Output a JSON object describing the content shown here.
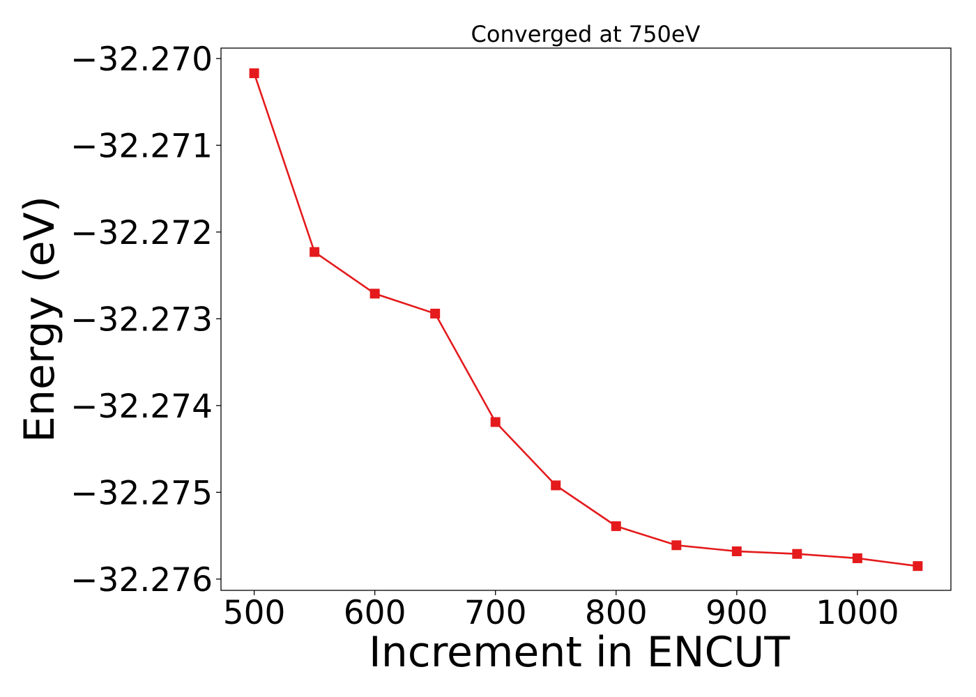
{
  "chart_data": {
    "type": "line",
    "title": "Converged at 750eV",
    "xlabel": "Increment in ENCUT",
    "ylabel": "Energy (eV)",
    "xlim": [
      472.5,
      1077.5
    ],
    "ylim": [
      -32.27613,
      -32.26988
    ],
    "x_ticks": [
      500,
      600,
      700,
      800,
      900,
      1000
    ],
    "x_tick_labels": [
      "500",
      "600",
      "700",
      "800",
      "900",
      "1000"
    ],
    "y_ticks": [
      -32.27,
      -32.271,
      -32.272,
      -32.273,
      -32.274,
      -32.275,
      -32.276
    ],
    "y_tick_labels": [
      "−32.270",
      "−32.271",
      "−32.272",
      "−32.273",
      "−32.274",
      "−32.275",
      "−32.276"
    ],
    "grid": false,
    "legend": "none",
    "series": [
      {
        "marker": "square",
        "color": "#e41a1c",
        "x": [
          500,
          550,
          600,
          650,
          700,
          750,
          800,
          850,
          900,
          950,
          1000,
          1050
        ],
        "y": [
          -32.27017,
          -32.27223,
          -32.27271,
          -32.27294,
          -32.27419,
          -32.27492,
          -32.27539,
          -32.27561,
          -32.27568,
          -32.27571,
          -32.27576,
          -32.27585
        ]
      }
    ]
  }
}
